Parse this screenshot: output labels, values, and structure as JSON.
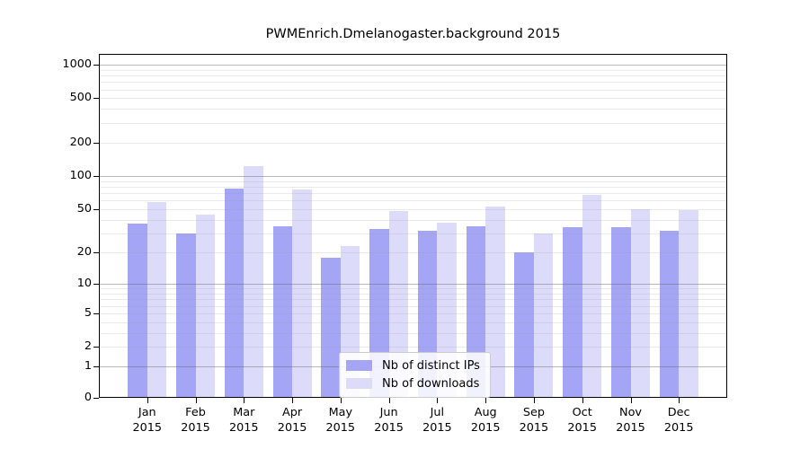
{
  "title": "PWMEnrich.Dmelanogaster.background 2015",
  "chart_data": {
    "type": "bar",
    "title": "PWMEnrich.Dmelanogaster.background 2015",
    "categories": [
      "Jan",
      "Feb",
      "Mar",
      "Apr",
      "May",
      "Jun",
      "Jul",
      "Aug",
      "Sep",
      "Oct",
      "Nov",
      "Dec"
    ],
    "year_label": "2015",
    "series": [
      {
        "name": "Nb of distinct IPs",
        "color": "#a5a5f5",
        "values": [
          37,
          30,
          77,
          35,
          18,
          33,
          32,
          35,
          20,
          34,
          34,
          32
        ]
      },
      {
        "name": "Nb of downloads",
        "color": "#dcdcfa",
        "values": [
          58,
          45,
          122,
          76,
          23,
          48,
          38,
          53,
          30,
          68,
          50,
          49
        ]
      }
    ],
    "xlabel": "",
    "ylabel": "",
    "yscale": "log1p",
    "y_ticks": [
      0,
      1,
      2,
      5,
      10,
      20,
      50,
      100,
      200,
      500,
      1000
    ],
    "ylim": [
      0,
      1200
    ],
    "grid": true,
    "legend_position": "bottom-center"
  }
}
